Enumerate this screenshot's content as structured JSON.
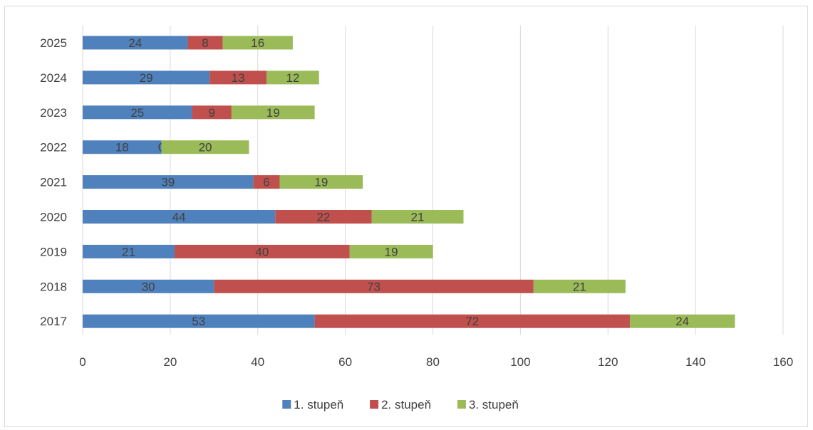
{
  "chart_data": {
    "type": "bar",
    "orientation": "horizontal",
    "stacked": true,
    "categories": [
      "2025",
      "2024",
      "2023",
      "2022",
      "2021",
      "2020",
      "2019",
      "2018",
      "2017"
    ],
    "series": [
      {
        "name": "1. stupeň",
        "color": "#4f81bd",
        "values": [
          24,
          29,
          25,
          18,
          39,
          44,
          21,
          30,
          53
        ]
      },
      {
        "name": "2. stupeň",
        "color": "#c0504d",
        "values": [
          8,
          13,
          9,
          0,
          6,
          22,
          40,
          73,
          72
        ]
      },
      {
        "name": "3. stupeň",
        "color": "#9bbb59",
        "values": [
          16,
          12,
          19,
          20,
          19,
          21,
          19,
          21,
          24
        ]
      }
    ],
    "xlim": [
      0,
      160
    ],
    "xticks": [
      0,
      20,
      40,
      60,
      80,
      100,
      120,
      140,
      160
    ],
    "grid": "vertical",
    "legend_position": "bottom",
    "data_labels": true
  }
}
